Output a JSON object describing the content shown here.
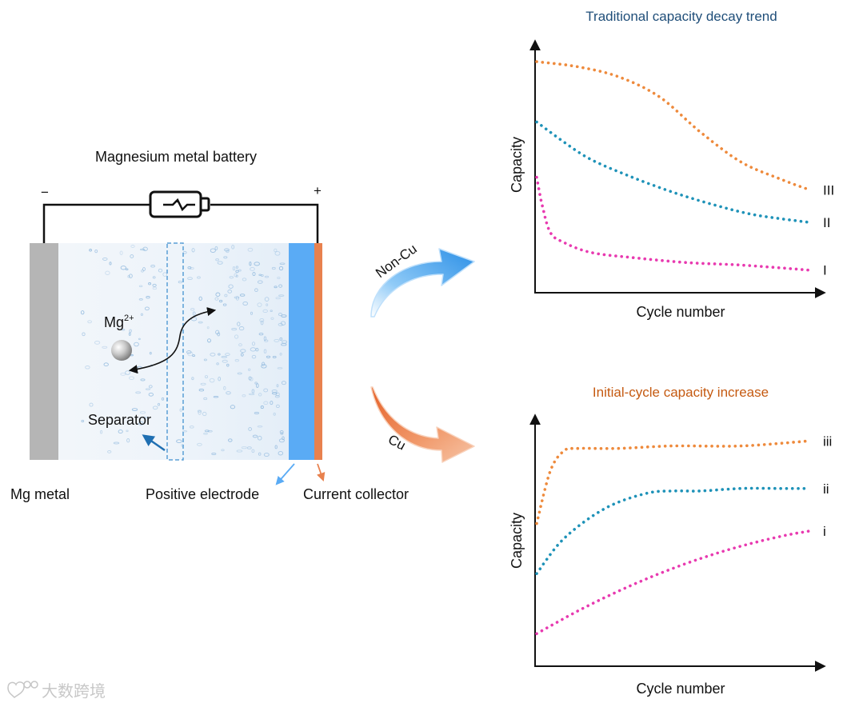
{
  "battery": {
    "title": "Magnesium metal battery",
    "minus": "−",
    "plus": "+",
    "ion_symbol": "Mg",
    "ion_charge": "2+",
    "labels": {
      "mg_metal": "Mg metal",
      "separator": "Separator",
      "positive_electrode": "Positive electrode",
      "current_collector": "Current collector"
    },
    "colors": {
      "anode": "#b5b5b5",
      "cathode": "#5aabf5",
      "collector": "#e8814e",
      "separator": "#5a9fd6"
    }
  },
  "arrows": {
    "non_cu": {
      "label": "Non-Cu",
      "color": "#4aa6f0"
    },
    "cu": {
      "label": "Cu",
      "color": "#ee7a47"
    }
  },
  "watermark": "大数跨境",
  "chart_data": [
    {
      "type": "line",
      "title": "Traditional capacity decay trend",
      "title_color": "#1f4e79",
      "xlabel": "Cycle number",
      "ylabel": "Capacity",
      "xlim": [
        0,
        100
      ],
      "ylim": [
        0,
        100
      ],
      "grid": false,
      "style": "dotted",
      "series": [
        {
          "name": "III",
          "color": "#ee8a3c",
          "x": [
            0,
            15,
            30,
            45,
            60,
            75,
            90,
            100
          ],
          "y": [
            92,
            90,
            86,
            78,
            64,
            52,
            45,
            41
          ]
        },
        {
          "name": "II",
          "color": "#1e92b8",
          "x": [
            0,
            10,
            20,
            35,
            50,
            65,
            80,
            100
          ],
          "y": [
            68,
            60,
            53,
            46,
            40,
            35,
            31,
            28
          ]
        },
        {
          "name": "I",
          "color": "#e83ab0",
          "x": [
            0,
            2,
            5,
            10,
            20,
            35,
            55,
            75,
            100
          ],
          "y": [
            46,
            35,
            24,
            20,
            16,
            14,
            12,
            11,
            9
          ]
        }
      ]
    },
    {
      "type": "line",
      "title": "Initial-cycle capacity increase",
      "title_color": "#c55a11",
      "xlabel": "Cycle number",
      "ylabel": "Capacity",
      "xlim": [
        0,
        100
      ],
      "ylim": [
        0,
        100
      ],
      "grid": false,
      "style": "dotted",
      "series": [
        {
          "name": "iii",
          "color": "#ee8a3c",
          "x": [
            0,
            5,
            10,
            15,
            30,
            50,
            75,
            100
          ],
          "y": [
            57,
            78,
            86,
            87,
            87,
            88,
            88,
            90
          ]
        },
        {
          "name": "ii",
          "color": "#1e92b8",
          "x": [
            0,
            10,
            25,
            40,
            50,
            60,
            75,
            90,
            100
          ],
          "y": [
            37,
            51,
            63,
            69,
            70,
            70,
            71,
            71,
            71
          ]
        },
        {
          "name": "i",
          "color": "#e83ab0",
          "x": [
            0,
            15,
            30,
            45,
            60,
            75,
            90,
            100
          ],
          "y": [
            13,
            22,
            30,
            37,
            43,
            48,
            52,
            54
          ]
        }
      ]
    }
  ]
}
